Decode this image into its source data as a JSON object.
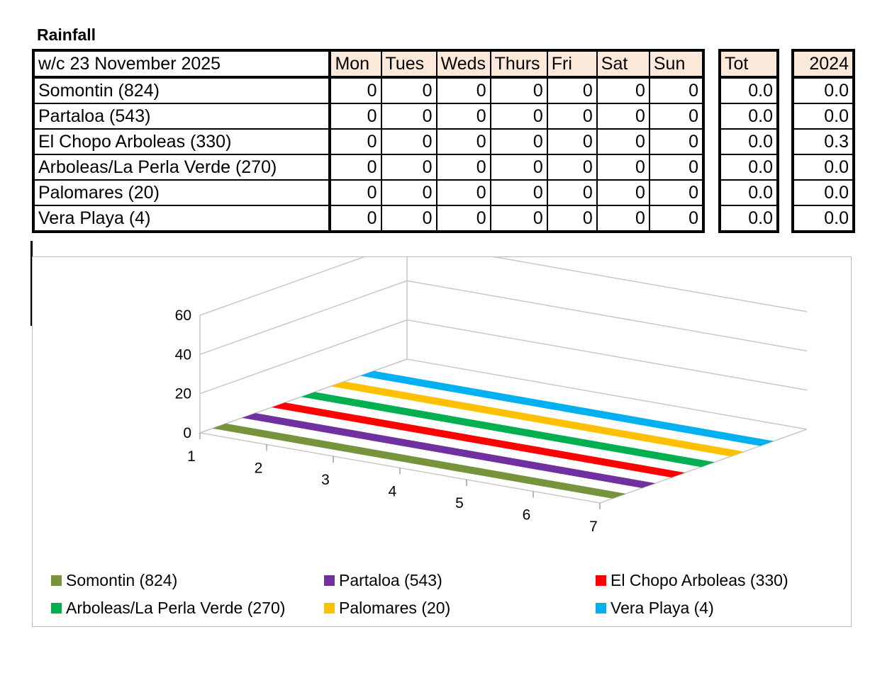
{
  "title": "Rainfall",
  "table": {
    "week_label": "w/c 23 November  2025",
    "days": [
      "Mon",
      "Tues",
      "Weds",
      "Thurs",
      "Fri",
      "Sat",
      "Sun"
    ],
    "tot_label": "Tot",
    "prev_label": "2024",
    "header_color": "#fde9d9",
    "rows": [
      {
        "name": "Somontin (824)",
        "values": [
          "0",
          "0",
          "0",
          "0",
          "0",
          "0",
          "0"
        ],
        "tot": "0.0",
        "prev": "0.0"
      },
      {
        "name": "Partaloa (543)",
        "values": [
          "0",
          "0",
          "0",
          "0",
          "0",
          "0",
          "0"
        ],
        "tot": "0.0",
        "prev": "0.0"
      },
      {
        "name": "El Chopo Arboleas (330)",
        "values": [
          "0",
          "0",
          "0",
          "0",
          "0",
          "0",
          "0"
        ],
        "tot": "0.0",
        "prev": "0.3"
      },
      {
        "name": "Arboleas/La Perla Verde (270)",
        "values": [
          "0",
          "0",
          "0",
          "0",
          "0",
          "0",
          "0"
        ],
        "tot": "0.0",
        "prev": "0.0"
      },
      {
        "name": "Palomares (20)",
        "values": [
          "0",
          "0",
          "0",
          "0",
          "0",
          "0",
          "0"
        ],
        "tot": "0.0",
        "prev": "0.0"
      },
      {
        "name": "Vera Playa (4)",
        "values": [
          "0",
          "0",
          "0",
          "0",
          "0",
          "0",
          "0"
        ],
        "tot": "0.0",
        "prev": "0.0"
      }
    ]
  },
  "chart_data": {
    "type": "area",
    "view": "3d",
    "categories": [
      "1",
      "2",
      "3",
      "4",
      "5",
      "6",
      "7"
    ],
    "y_ticks": [
      "0",
      "20",
      "40",
      "60"
    ],
    "ylim": [
      0,
      60
    ],
    "grid": true,
    "legend_position": "bottom",
    "series": [
      {
        "name": "Somontin (824)",
        "values": [
          0,
          0,
          0,
          0,
          0,
          0,
          0
        ],
        "color": "#77933c"
      },
      {
        "name": "Partaloa (543)",
        "values": [
          0,
          0,
          0,
          0,
          0,
          0,
          0
        ],
        "color": "#7030a0"
      },
      {
        "name": "El Chopo Arboleas (330)",
        "values": [
          0,
          0,
          0,
          0,
          0,
          0,
          0
        ],
        "color": "#ff0000"
      },
      {
        "name": "Arboleas/La Perla Verde (270)",
        "values": [
          0,
          0,
          0,
          0,
          0,
          0,
          0
        ],
        "color": "#00b050"
      },
      {
        "name": "Palomares (20)",
        "values": [
          0,
          0,
          0,
          0,
          0,
          0,
          0
        ],
        "color": "#ffc000"
      },
      {
        "name": "Vera Playa (4)",
        "values": [
          0,
          0,
          0,
          0,
          0,
          0,
          0
        ],
        "color": "#00b0f0"
      }
    ]
  }
}
